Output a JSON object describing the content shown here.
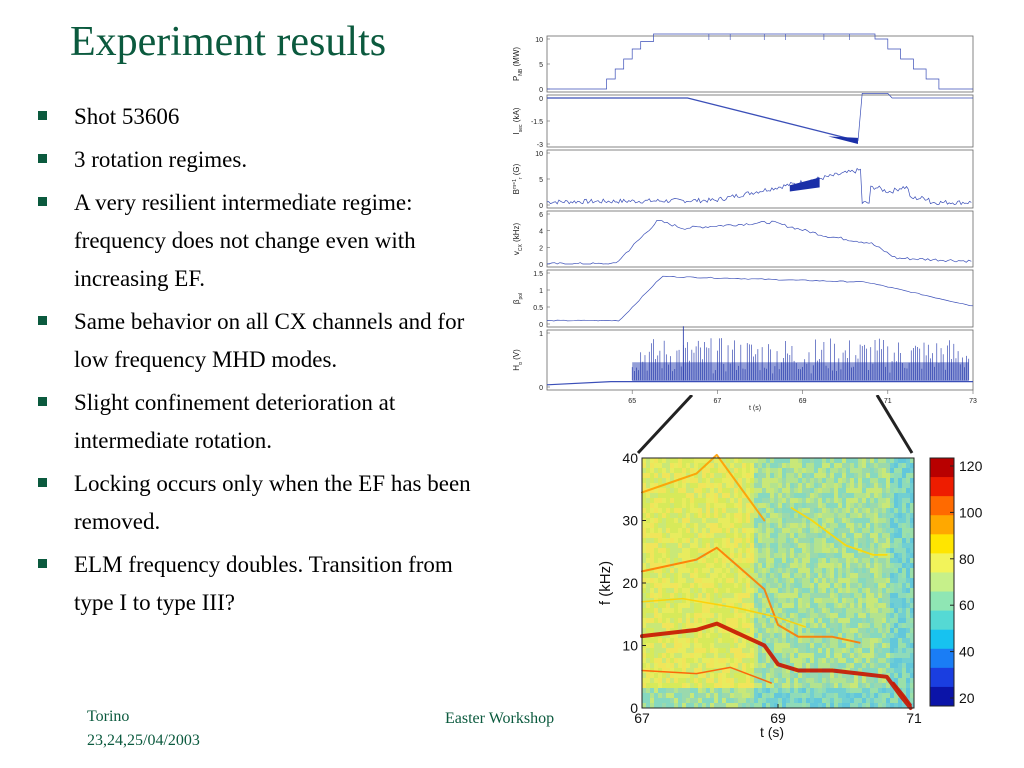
{
  "slide": {
    "title": "Experiment results",
    "bullets": [
      "Shot 53606",
      "3 rotation regimes.",
      "A very resilient intermediate regime: frequency does not change even with increasing EF.",
      "Same behavior on all CX channels and for low frequency MHD modes.",
      "Slight confinement deterioration at intermediate rotation.",
      "Locking occurs only when the EF has been removed.",
      "ELM frequency doubles. Transition from type I to type III?"
    ],
    "footer_left_line1": "Torino",
    "footer_left_line2": "23,24,25/04/2003",
    "footer_center": "Easter Workshop",
    "accent_color": "#0b5a3e"
  },
  "traces": {
    "x_ticks": [
      "65",
      "67",
      "69",
      "71",
      "73"
    ],
    "x_label": "t (s)",
    "panels": [
      {
        "ylabel": "P_NB (MW)",
        "ylabel_main": "P",
        "ylabel_sub": "NB",
        "ylabel_unit": " (MW)",
        "yticks": [
          "10",
          "5",
          "0"
        ]
      },
      {
        "ylabel": "I_sec (kA)",
        "ylabel_main": "I",
        "ylabel_sub": "sec",
        "ylabel_unit": " (kA)",
        "yticks": [
          "0",
          "-1.5",
          "-3"
        ]
      },
      {
        "ylabel": "B_r^m=1 (G)",
        "ylabel_main": "B",
        "ylabel_sup": "m=1",
        "ylabel_sub": "r",
        "ylabel_unit": " (G)",
        "yticks": [
          "10",
          "5",
          "0"
        ]
      },
      {
        "ylabel": "v_CX (kHz)",
        "ylabel_main": "v",
        "ylabel_sub": "CX",
        "ylabel_unit": " (kHz)",
        "yticks": [
          "6",
          "4",
          "2",
          "0"
        ]
      },
      {
        "ylabel": "beta_pol",
        "ylabel_main": "β",
        "ylabel_sub": "pol",
        "ylabel_unit": "",
        "yticks": [
          "1.5",
          "1",
          "0.5",
          "0"
        ]
      },
      {
        "ylabel": "H_alpha (V)",
        "ylabel_main": "H",
        "ylabel_sub": "α",
        "ylabel_unit": " (V)",
        "yticks": [
          "1",
          "0"
        ]
      }
    ],
    "line_color": "#3b4fb8"
  },
  "spectrogram": {
    "x_ticks": [
      "67",
      "69",
      "71"
    ],
    "y_ticks": [
      "40",
      "30",
      "20",
      "10",
      "0"
    ],
    "x_label": "t (s)",
    "y_label": "f (kHz)",
    "colorbar_ticks": [
      "120",
      "100",
      "80",
      "60",
      "40",
      "20"
    ],
    "colorbar_colors": [
      "#b80000",
      "#ee1c00",
      "#ff6a00",
      "#ffa800",
      "#ffe500",
      "#f2f35a",
      "#c6f08a",
      "#8fe6b4",
      "#55d9d4",
      "#17c2f0",
      "#1a7df5",
      "#1a3ee0",
      "#0b14a8"
    ]
  }
}
